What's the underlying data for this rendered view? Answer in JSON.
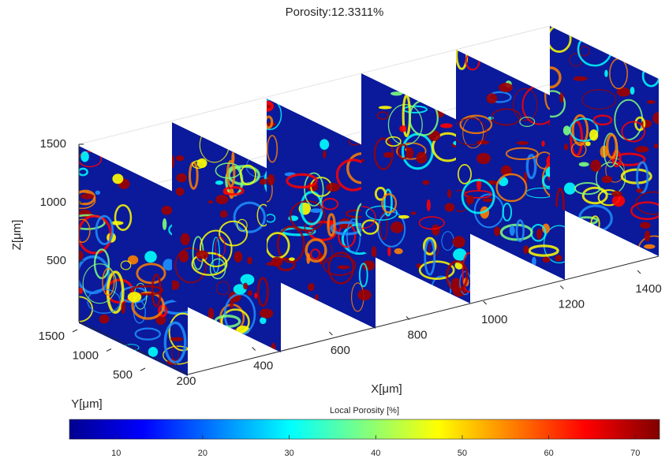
{
  "chart_data": {
    "type": "slice3d",
    "title": "Porosity:12.3311%",
    "xlabel": "X[μm]",
    "ylabel": "Y[μm]",
    "zlabel": "Z[μm]",
    "xticks": [
      200,
      400,
      600,
      800,
      1000,
      1200,
      1400
    ],
    "yticks": [
      500,
      1000,
      1500
    ],
    "zticks": [
      500,
      1000,
      1500
    ],
    "colorbar": {
      "label": "Local Porosity [%]",
      "colormap": "jet",
      "clim": [
        4.6,
        72.8
      ],
      "ticks": [
        10,
        20,
        30,
        40,
        50,
        60,
        70
      ]
    }
  }
}
